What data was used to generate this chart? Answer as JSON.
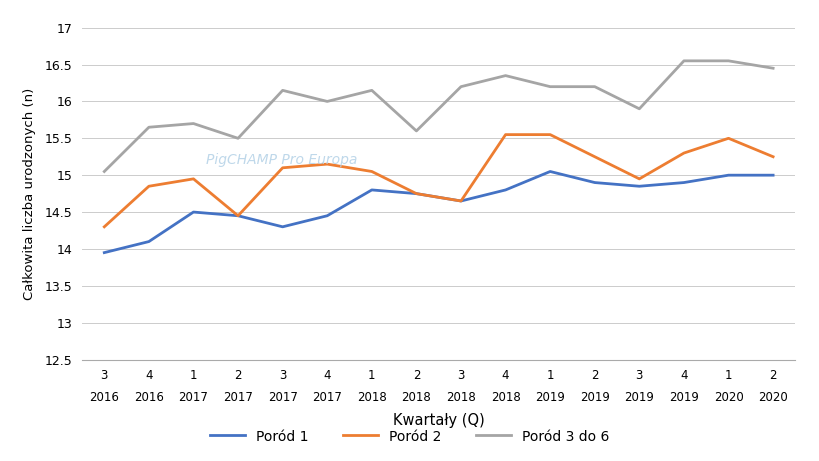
{
  "x_labels": [
    [
      "3",
      "2016"
    ],
    [
      "4",
      "2016"
    ],
    [
      "1",
      "2017"
    ],
    [
      "2",
      "2017"
    ],
    [
      "3",
      "2017"
    ],
    [
      "4",
      "2017"
    ],
    [
      "1",
      "2018"
    ],
    [
      "2",
      "2018"
    ],
    [
      "3",
      "2018"
    ],
    [
      "4",
      "2018"
    ],
    [
      "1",
      "2019"
    ],
    [
      "2",
      "2019"
    ],
    [
      "3",
      "2019"
    ],
    [
      "4",
      "2019"
    ],
    [
      "1",
      "2020"
    ],
    [
      "2",
      "2020"
    ]
  ],
  "porod1": [
    13.95,
    14.1,
    14.5,
    14.45,
    14.3,
    14.45,
    14.8,
    14.75,
    14.65,
    14.8,
    15.05,
    14.9,
    14.85,
    14.9,
    15.0,
    15.0
  ],
  "porod2": [
    14.3,
    14.85,
    14.95,
    14.45,
    15.1,
    15.15,
    15.05,
    14.75,
    14.65,
    15.55,
    15.55,
    15.25,
    14.95,
    15.3,
    15.5,
    15.25
  ],
  "porod3to6": [
    15.05,
    15.65,
    15.7,
    15.5,
    16.15,
    16.0,
    16.15,
    15.6,
    16.2,
    16.35,
    16.2,
    16.2,
    15.9,
    16.55,
    16.55,
    16.45
  ],
  "color_porod1": "#4472C4",
  "color_porod2": "#ED7D31",
  "color_porod3to6": "#A5A5A5",
  "ylabel": "Całkowita liczba urodzonych (n)",
  "xlabel": "Kwartały (Q)",
  "ylim": [
    12.5,
    17.0
  ],
  "yticks": [
    12.5,
    13.0,
    13.5,
    14.0,
    14.5,
    15.0,
    15.5,
    16.0,
    16.5,
    17.0
  ],
  "legend_labels": [
    "Poród 1",
    "Poród 2",
    "Poród 3 do 6"
  ],
  "watermark": "PigCHAMP Pro Europa",
  "line_width": 2.0
}
